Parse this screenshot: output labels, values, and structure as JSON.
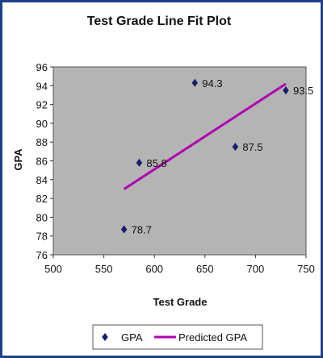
{
  "chart_data": {
    "type": "scatter",
    "title": "Test Grade Line Fit  Plot",
    "xlabel": "Test Grade",
    "ylabel": "GPA",
    "xlim": [
      500,
      750
    ],
    "ylim": [
      76,
      96
    ],
    "x_ticks": [
      500,
      550,
      600,
      650,
      700,
      750
    ],
    "y_ticks": [
      76,
      78,
      80,
      82,
      84,
      86,
      88,
      90,
      92,
      94,
      96
    ],
    "grid": false,
    "legend_position": "bottom",
    "series": [
      {
        "name": "GPA",
        "kind": "scatter",
        "marker": "diamond",
        "color": "#1a1a6e",
        "points": [
          {
            "x": 570,
            "y": 78.7,
            "label": "78.7"
          },
          {
            "x": 585,
            "y": 85.8,
            "label": "85.8"
          },
          {
            "x": 640,
            "y": 94.3,
            "label": "94.3"
          },
          {
            "x": 680,
            "y": 87.5,
            "label": "87.5"
          },
          {
            "x": 730,
            "y": 93.5,
            "label": "93.5"
          }
        ]
      },
      {
        "name": "Predicted GPA",
        "kind": "line",
        "color": "#b000b0",
        "points": [
          {
            "x": 570,
            "y": 83.0
          },
          {
            "x": 730,
            "y": 94.2
          }
        ]
      }
    ],
    "plot_background": "#b4b4b4"
  }
}
